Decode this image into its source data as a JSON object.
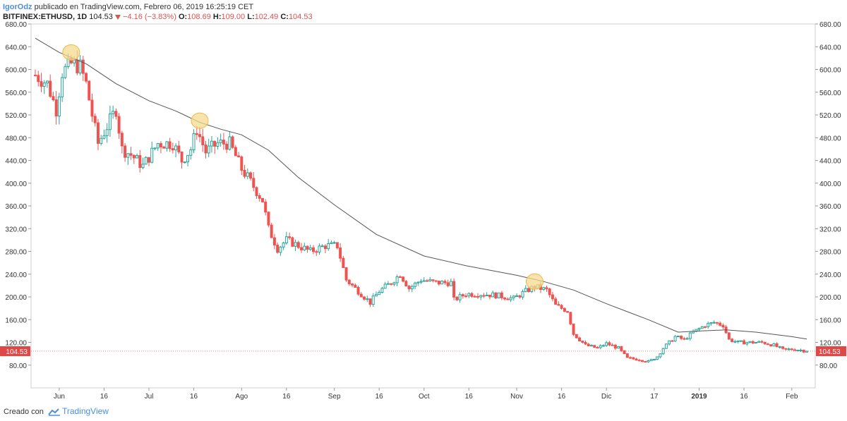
{
  "header": {
    "author": "IgorOdz",
    "published_text": "publicado en TradingView.com, Febrero 06, 2019 16:25:19 CET",
    "symbol": "BITFINEX:ETHUSD, 1D",
    "last_price": "104.53",
    "change": "−4.16 (−3.83%)",
    "open_label": "O:",
    "open": "108.69",
    "high_label": "H:",
    "high": "109.00",
    "low_label": "L:",
    "low": "102.49",
    "close_label": "C:",
    "close": "104.53"
  },
  "footer": {
    "created_with": "Creado con",
    "brand": "TradingView"
  },
  "colors": {
    "up": "#26a69a",
    "down": "#ef5350",
    "ma": "#555555",
    "highlight_fill": "#f5d98e",
    "highlight_stroke": "#e8b94a",
    "price_label_bg": "#e04848",
    "grid_axis": "#cfcfcf",
    "text": "#333333"
  },
  "chart_data": {
    "type": "candlestick",
    "title": "BITFINEX:ETHUSD, 1D",
    "xlabel": "",
    "ylabel": "",
    "ylim": [
      40,
      680
    ],
    "y_ticks": [
      "80.00",
      "120.00",
      "160.00",
      "200.00",
      "240.00",
      "280.00",
      "320.00",
      "360.00",
      "400.00",
      "440.00",
      "480.00",
      "520.00",
      "560.00",
      "600.00",
      "640.00",
      "680.00"
    ],
    "x_range": [
      "2018-05-24",
      "2019-02-06"
    ],
    "x_ticks": [
      {
        "label": "Jun",
        "date": "2018-06-01",
        "bold": false
      },
      {
        "label": "16",
        "date": "2018-06-16",
        "bold": false
      },
      {
        "label": "Jul",
        "date": "2018-07-01",
        "bold": false
      },
      {
        "label": "16",
        "date": "2018-07-16",
        "bold": false
      },
      {
        "label": "Ago",
        "date": "2018-08-01",
        "bold": false
      },
      {
        "label": "16",
        "date": "2018-08-16",
        "bold": false
      },
      {
        "label": "Sep",
        "date": "2018-09-01",
        "bold": false
      },
      {
        "label": "16",
        "date": "2018-09-16",
        "bold": false
      },
      {
        "label": "Oct",
        "date": "2018-10-01",
        "bold": false
      },
      {
        "label": "16",
        "date": "2018-10-16",
        "bold": false
      },
      {
        "label": "Nov",
        "date": "2018-11-01",
        "bold": false
      },
      {
        "label": "16",
        "date": "2018-11-16",
        "bold": false
      },
      {
        "label": "Dic",
        "date": "2018-12-01",
        "bold": false
      },
      {
        "label": "17",
        "date": "2018-12-17",
        "bold": false
      },
      {
        "label": "2019",
        "date": "2019-01-01",
        "bold": true
      },
      {
        "label": "16",
        "date": "2019-01-16",
        "bold": false
      },
      {
        "label": "Feb",
        "date": "2019-02-01",
        "bold": false
      }
    ],
    "price_path": [
      [
        "2018-05-24",
        590
      ],
      [
        "2018-05-28",
        575
      ],
      [
        "2018-05-31",
        530
      ],
      [
        "2018-06-02",
        595
      ],
      [
        "2018-06-05",
        610
      ],
      [
        "2018-06-08",
        605
      ],
      [
        "2018-06-10",
        575
      ],
      [
        "2018-06-12",
        520
      ],
      [
        "2018-06-14",
        470
      ],
      [
        "2018-06-17",
        500
      ],
      [
        "2018-06-20",
        530
      ],
      [
        "2018-06-22",
        460
      ],
      [
        "2018-06-25",
        450
      ],
      [
        "2018-06-29",
        430
      ],
      [
        "2018-07-04",
        470
      ],
      [
        "2018-07-09",
        470
      ],
      [
        "2018-07-12",
        440
      ],
      [
        "2018-07-15",
        460
      ],
      [
        "2018-07-17",
        495
      ],
      [
        "2018-07-20",
        455
      ],
      [
        "2018-07-24",
        470
      ],
      [
        "2018-07-28",
        470
      ],
      [
        "2018-08-01",
        425
      ],
      [
        "2018-08-03",
        410
      ],
      [
        "2018-08-08",
        370
      ],
      [
        "2018-08-10",
        320
      ],
      [
        "2018-08-13",
        285
      ],
      [
        "2018-08-16",
        300
      ],
      [
        "2018-08-20",
        290
      ],
      [
        "2018-08-24",
        280
      ],
      [
        "2018-08-29",
        290
      ],
      [
        "2018-09-02",
        290
      ],
      [
        "2018-09-05",
        230
      ],
      [
        "2018-09-10",
        205
      ],
      [
        "2018-09-13",
        190
      ],
      [
        "2018-09-16",
        210
      ],
      [
        "2018-09-20",
        225
      ],
      [
        "2018-09-23",
        240
      ],
      [
        "2018-09-26",
        215
      ],
      [
        "2018-09-30",
        230
      ],
      [
        "2018-10-05",
        225
      ],
      [
        "2018-10-10",
        225
      ],
      [
        "2018-10-11",
        195
      ],
      [
        "2018-10-15",
        205
      ],
      [
        "2018-10-20",
        205
      ],
      [
        "2018-10-25",
        203
      ],
      [
        "2018-10-31",
        197
      ],
      [
        "2018-11-04",
        210
      ],
      [
        "2018-11-07",
        218
      ],
      [
        "2018-11-11",
        212
      ],
      [
        "2018-11-14",
        185
      ],
      [
        "2018-11-18",
        175
      ],
      [
        "2018-11-20",
        135
      ],
      [
        "2018-11-24",
        115
      ],
      [
        "2018-11-28",
        110
      ],
      [
        "2018-12-01",
        118
      ],
      [
        "2018-12-05",
        110
      ],
      [
        "2018-12-08",
        92
      ],
      [
        "2018-12-12",
        90
      ],
      [
        "2018-12-15",
        86
      ],
      [
        "2018-12-18",
        95
      ],
      [
        "2018-12-20",
        110
      ],
      [
        "2018-12-24",
        130
      ],
      [
        "2018-12-27",
        125
      ],
      [
        "2018-12-30",
        138
      ],
      [
        "2019-01-03",
        150
      ],
      [
        "2019-01-06",
        155
      ],
      [
        "2019-01-09",
        150
      ],
      [
        "2019-01-11",
        125
      ],
      [
        "2019-01-14",
        120
      ],
      [
        "2019-01-18",
        120
      ],
      [
        "2019-01-22",
        120
      ],
      [
        "2019-01-26",
        115
      ],
      [
        "2019-01-29",
        107
      ],
      [
        "2019-02-02",
        108
      ],
      [
        "2019-02-06",
        104.53
      ]
    ],
    "ma_line": [
      [
        "2018-05-24",
        655
      ],
      [
        "2018-06-01",
        630
      ],
      [
        "2018-06-10",
        610
      ],
      [
        "2018-06-20",
        575
      ],
      [
        "2018-07-01",
        545
      ],
      [
        "2018-07-10",
        527
      ],
      [
        "2018-07-18",
        507
      ],
      [
        "2018-07-25",
        495
      ],
      [
        "2018-08-01",
        485
      ],
      [
        "2018-08-10",
        458
      ],
      [
        "2018-08-20",
        410
      ],
      [
        "2018-09-01",
        362
      ],
      [
        "2018-09-15",
        310
      ],
      [
        "2018-10-01",
        272
      ],
      [
        "2018-10-15",
        255
      ],
      [
        "2018-11-01",
        238
      ],
      [
        "2018-11-10",
        227
      ],
      [
        "2018-11-20",
        212
      ],
      [
        "2018-12-01",
        188
      ],
      [
        "2018-12-15",
        160
      ],
      [
        "2018-12-25",
        138
      ],
      [
        "2019-01-01",
        140
      ],
      [
        "2019-01-10",
        142
      ],
      [
        "2019-01-20",
        138
      ],
      [
        "2019-02-01",
        130
      ],
      [
        "2019-02-06",
        126
      ]
    ],
    "highlights": [
      {
        "date": "2018-06-05",
        "price": 630
      },
      {
        "date": "2018-07-18",
        "price": 510
      },
      {
        "date": "2018-11-07",
        "price": 227
      }
    ],
    "last_price_label": "104.53"
  }
}
